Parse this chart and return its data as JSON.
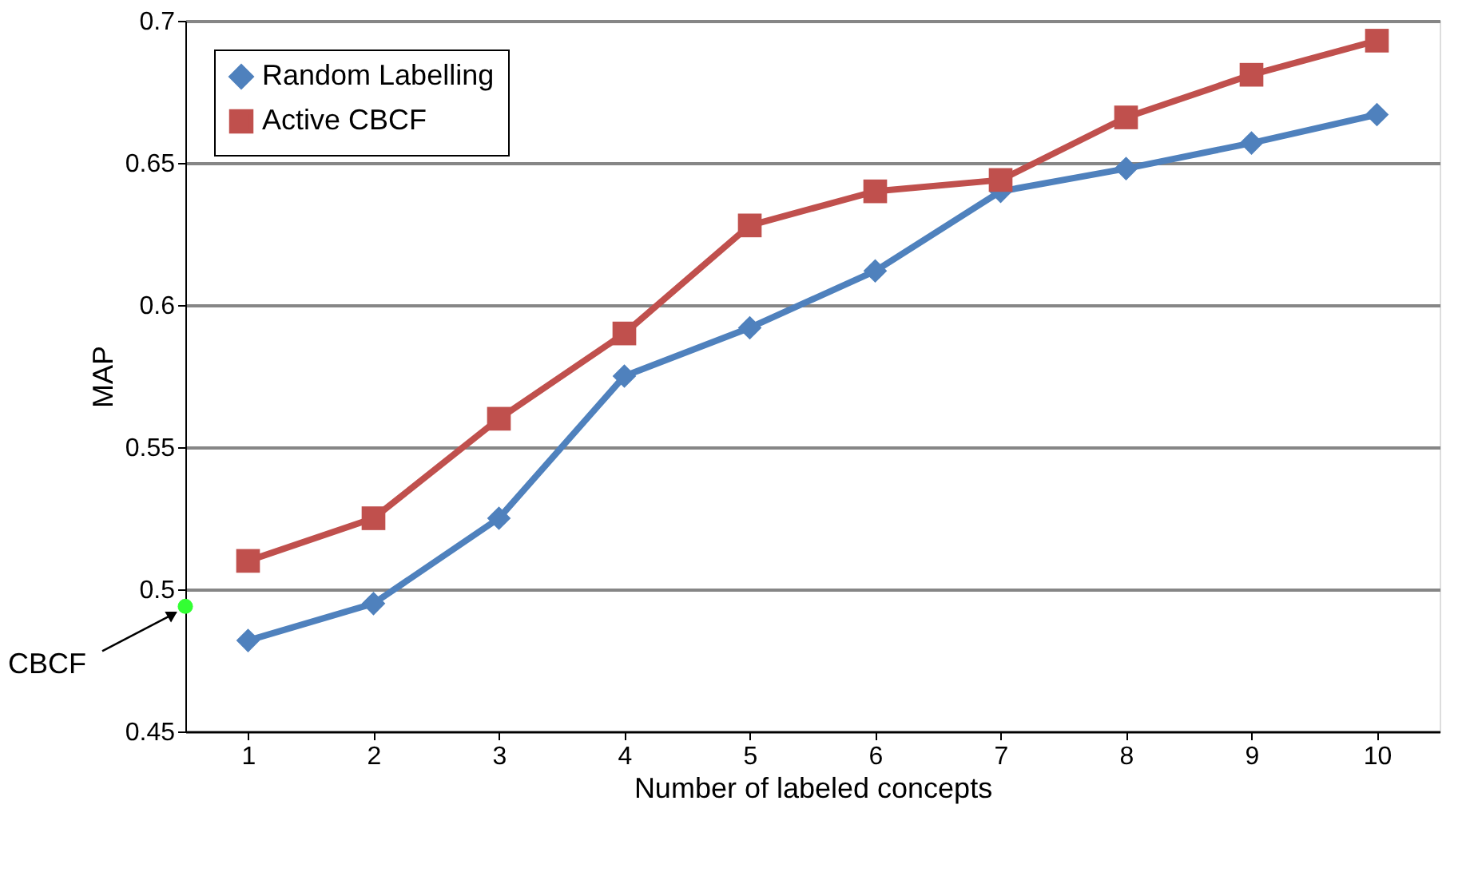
{
  "chart_data": {
    "type": "line",
    "xlabel": "Number of labeled concepts",
    "ylabel": "MAP",
    "x": [
      1,
      2,
      3,
      4,
      5,
      6,
      7,
      8,
      9,
      10
    ],
    "xlim": [
      0.5,
      10.5
    ],
    "xticks": [
      1,
      2,
      3,
      4,
      5,
      6,
      7,
      8,
      9,
      10
    ],
    "ylim": [
      0.45,
      0.7
    ],
    "yticks": [
      0.45,
      0.5,
      0.55,
      0.6,
      0.65,
      0.7
    ],
    "series": [
      {
        "name": "Random Labelling",
        "color": "#4f81bd",
        "marker": "diamond",
        "values": [
          0.482,
          0.495,
          0.525,
          0.575,
          0.592,
          0.612,
          0.64,
          0.648,
          0.657,
          0.667
        ]
      },
      {
        "name": "Active CBCF",
        "color": "#c0504d",
        "marker": "square",
        "values": [
          0.51,
          0.525,
          0.56,
          0.59,
          0.628,
          0.64,
          0.644,
          0.666,
          0.681,
          0.693
        ]
      },
      {
        "type": "scatter",
        "color": "#33ff33",
        "marker": "circle",
        "x": [
          0.5
        ],
        "values": [
          0.494
        ]
      }
    ],
    "annotations": [
      {
        "text": "CBCF",
        "x": 0.5,
        "y": 0.494
      }
    ],
    "grid": "y",
    "legend": "top left"
  }
}
